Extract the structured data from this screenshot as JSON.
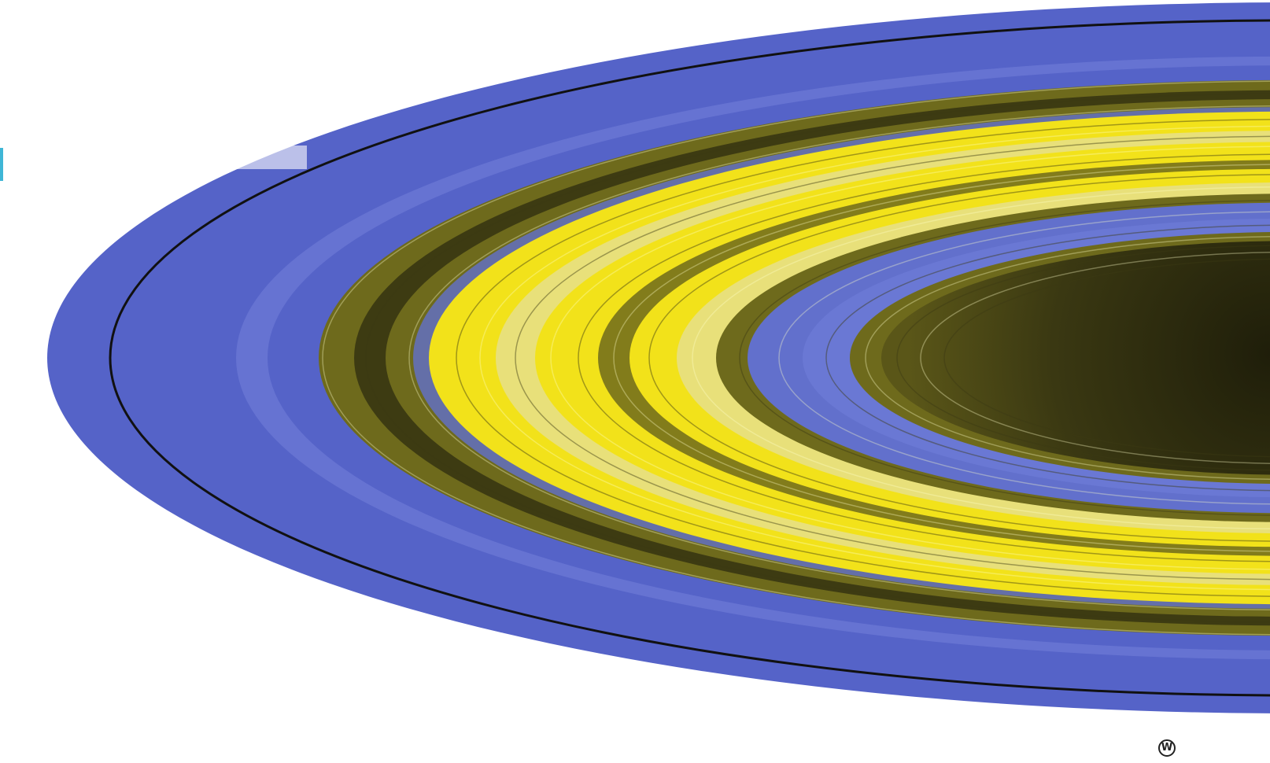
{
  "image": {
    "subject": "rings",
    "colors": {
      "background": "#ffffff",
      "outer_ring": "#5563c8",
      "outer_ring_light": "#6d7ad6",
      "gap_line": "#111111",
      "dark_band": "#3d3b12",
      "olive_band": "#6e6a1c",
      "bright_yellow": "#f2e21a",
      "pale_yellow": "#e8e07a",
      "inner_blue": "#6270cc",
      "inner_dark": "#2f2d10",
      "edge_mark": "#3fb6d6"
    }
  },
  "corner_glyph": {
    "text": "W",
    "icon": "circle-w-icon"
  }
}
